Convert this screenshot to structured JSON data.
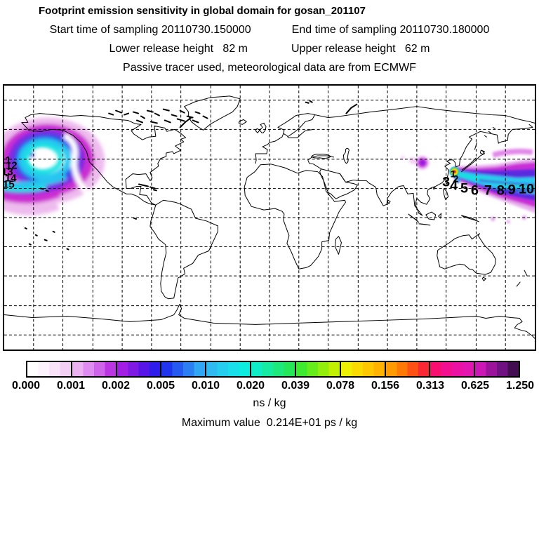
{
  "header": {
    "title": "Footprint emission sensitivity in global domain for gosan_201107",
    "sampling_start": "Start time of sampling 20110730.150000",
    "sampling_end": "End time of sampling 20110730.180000",
    "lower_release": "Lower release height   82 m",
    "upper_release": "Upper release height   62 m",
    "tracer_note": "Passive tracer used, meteorological data are from ECMWF"
  },
  "map": {
    "day_markers": [
      {
        "label": "3"
      },
      {
        "label": "4"
      },
      {
        "label": "5"
      },
      {
        "label": "6"
      },
      {
        "label": "7"
      },
      {
        "label": "8"
      },
      {
        "label": "9"
      },
      {
        "label": "10"
      }
    ],
    "edge_markers": [
      {
        "label": "11"
      },
      {
        "label": "12"
      },
      {
        "label": "13"
      },
      {
        "label": "14"
      },
      {
        "label": "15"
      }
    ],
    "source_markers": [
      {
        "label": "1"
      },
      {
        "label": "2"
      }
    ]
  },
  "colorbar": {
    "ticks": [
      "0.000",
      "0.001",
      "0.002",
      "0.005",
      "0.010",
      "0.020",
      "0.039",
      "0.078",
      "0.156",
      "0.313",
      "0.625",
      "1.250"
    ],
    "unit": "ns / kg",
    "segments": [
      [
        "#ffffff",
        "#fdf3fd",
        "#f8e3f8",
        "#f1d0f4"
      ],
      [
        "#eab2f1",
        "#de8cef",
        "#cf63e9",
        "#bb36e2"
      ],
      [
        "#a21ee4",
        "#7f19e4",
        "#5716e7",
        "#2d1cea"
      ],
      [
        "#2033ee",
        "#2659f0",
        "#2b7ff2",
        "#31a6f4"
      ],
      [
        "#30baf2",
        "#25cdee",
        "#18dfe9",
        "#0cecdf"
      ],
      [
        "#0eedc6",
        "#15eba1",
        "#1ce87c",
        "#24e656"
      ],
      [
        "#3dea30",
        "#67ec1b",
        "#94ee0b",
        "#c2f002"
      ],
      [
        "#edf000",
        "#fadb00",
        "#ffc700",
        "#ffb300"
      ],
      [
        "#ff9b00",
        "#ff7907",
        "#ff5114",
        "#fa2734"
      ],
      [
        "#f90f6f",
        "#f21091",
        "#eb12a3",
        "#e215b1"
      ],
      [
        "#cb17b3",
        "#9c139b",
        "#6f1180",
        "#430d52"
      ]
    ]
  },
  "footer": {
    "max_line": "Maximum value  0.214E+01 ps / kg"
  },
  "chart_data": {
    "type": "heatmap",
    "title": "Footprint emission sensitivity in global domain for gosan_201107",
    "station": "gosan_201107",
    "sampling_start": "20110730.150000",
    "sampling_end": "20110730.180000",
    "lower_release_height_m": 82,
    "upper_release_height_m": 62,
    "tracer": "Passive tracer used, meteorological data are from ECMWF",
    "unit": "ns / kg",
    "max_value": "0.214E+01 ps / kg",
    "colorbar_tick_values": [
      0.0,
      0.001,
      0.002,
      0.005,
      0.01,
      0.02,
      0.039,
      0.078,
      0.156,
      0.313,
      0.625,
      1.25
    ],
    "colorbar_boundary_colors": [
      "#ffffff",
      "#eab2f1",
      "#a21ee4",
      "#2033ee",
      "#30baf2",
      "#0eedc6",
      "#3dea30",
      "#edf000",
      "#ff9b00",
      "#f90f6f",
      "#cb17b3",
      "#430d52"
    ],
    "map_extent": {
      "lon_range": [
        -180,
        180
      ],
      "lat_range": [
        -90,
        90
      ],
      "grid_step_deg": 20,
      "gridlines": "dashed"
    },
    "trajectory_day_labels": [
      3,
      4,
      5,
      6,
      7,
      8,
      9,
      10
    ],
    "features": [
      {
        "name": "source-hotspot",
        "lon": 126,
        "lat": 33,
        "value_range_ns_kg": [
          0.3,
          1.25
        ],
        "description": "maximum sensitivity spot at Gosan station (Jeju, Korea) with rainbow rings red-yellow-green-cyan"
      },
      {
        "name": "china-patch",
        "lon": 104,
        "lat": 37,
        "value_range_ns_kg": [
          0.001,
          0.005
        ],
        "description": "small magenta-purple sensitivity patch over northern China"
      },
      {
        "name": "transpacific-plume",
        "lon_range": [
          126,
          180
        ],
        "lat": 30,
        "value_range_ns_kg": [
          0.002,
          0.02
        ],
        "description": "eastward widening band from Korea across the Pacific to the dateline, cyan core with blue-purple bands and magenta fringe, day markers 3-10 along it"
      },
      {
        "name": "north-pacific-spiral",
        "lon": -149,
        "lat": 39,
        "value_range_ns_kg": [
          0.001,
          0.02
        ],
        "description": "large cyclonic spiral in the NE Pacific off North America, magenta-purple outer arms, cyan-blue inner arms, white eye; continues across the dateline from the plume"
      }
    ]
  }
}
